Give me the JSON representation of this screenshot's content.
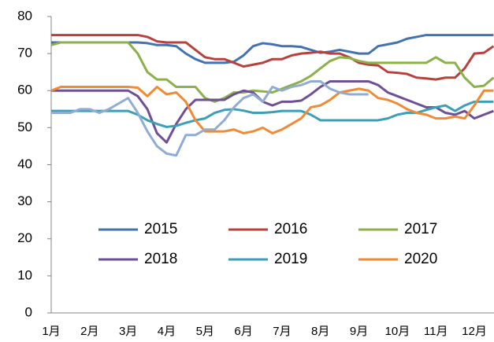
{
  "chart_data": {
    "type": "line",
    "categories": [
      "1月",
      null,
      null,
      null,
      "2月",
      null,
      null,
      null,
      "3月",
      null,
      null,
      null,
      "4月",
      null,
      null,
      null,
      "5月",
      null,
      null,
      null,
      "6月",
      null,
      null,
      null,
      "7月",
      null,
      null,
      null,
      "8月",
      null,
      null,
      null,
      "9月",
      null,
      null,
      null,
      "10月",
      null,
      null,
      null,
      "11月",
      null,
      null,
      null,
      "12月",
      null,
      null
    ],
    "ylim": [
      0,
      80
    ],
    "yticks": [
      0,
      10,
      20,
      30,
      40,
      50,
      60,
      70,
      80
    ],
    "grid": false,
    "legend": "inside",
    "series": [
      {
        "name": "2015",
        "color": "#4372b0",
        "values": [
          73,
          73,
          73,
          73,
          73,
          73,
          73,
          73,
          73,
          73,
          72.8,
          72.3,
          72.3,
          72,
          70,
          68.5,
          67.5,
          67.5,
          67.5,
          67.8,
          69.5,
          72,
          72.8,
          72.5,
          72,
          72,
          71.8,
          71,
          70.2,
          70.5,
          71,
          70.5,
          70,
          70,
          72,
          72.5,
          73,
          74,
          74.5,
          75,
          75,
          75,
          75,
          75,
          75,
          75,
          75
        ]
      },
      {
        "name": "2016",
        "color": "#b8413e",
        "values": [
          75,
          75,
          75,
          75,
          75,
          75,
          75,
          75,
          75,
          75,
          74.5,
          73.3,
          73,
          73,
          73,
          71,
          69,
          68.5,
          68.5,
          67.5,
          66.5,
          67,
          67.5,
          68.5,
          68.5,
          69.5,
          70,
          70.2,
          70.5,
          70,
          70,
          69,
          67.5,
          67,
          66.8,
          65,
          64.8,
          64.5,
          63.5,
          63.3,
          63,
          63.5,
          63.5,
          66,
          70,
          70.2,
          72
        ]
      },
      {
        "name": "2017",
        "color": "#8cb04a",
        "values": [
          72.3,
          73,
          73,
          73,
          73,
          73,
          73,
          73,
          73,
          70,
          65,
          63,
          63,
          61,
          61,
          61,
          58,
          57,
          58,
          59.5,
          59.5,
          60,
          59.8,
          59.5,
          60.5,
          61.5,
          62.5,
          64,
          66,
          68,
          69,
          68.8,
          68,
          67.5,
          67.5,
          67.5,
          67.5,
          67.5,
          67.5,
          67.5,
          69,
          67.5,
          67.5,
          63.5,
          61,
          61.3,
          63.5
        ]
      },
      {
        "name": "2018",
        "color": "#6f4f95",
        "values": [
          60,
          60,
          60,
          60,
          60,
          60,
          60,
          60,
          60,
          58.5,
          55,
          48.5,
          46,
          51,
          55,
          57.5,
          57.5,
          57.5,
          57.5,
          59,
          60,
          59.5,
          57,
          56,
          57,
          57,
          57.3,
          59,
          61,
          62.5,
          62.5,
          62.5,
          62.5,
          62.5,
          61.5,
          59.5,
          58.5,
          57.5,
          56.5,
          55.5,
          55.5,
          54,
          53.5,
          54.5,
          52.5,
          53.5,
          54.5
        ]
      },
      {
        "name": "2019",
        "color": "#3aa0b8",
        "values": [
          54.5,
          54.5,
          54.5,
          54.5,
          54.5,
          54.5,
          54.5,
          54.5,
          54.5,
          53.5,
          52,
          51,
          50.2,
          50.5,
          51.3,
          52,
          52.5,
          54,
          54.8,
          55,
          54.6,
          54,
          54,
          54.2,
          54.5,
          54.5,
          54.5,
          53.5,
          52,
          52,
          52,
          52,
          52,
          52,
          52,
          52.5,
          53.5,
          54,
          54,
          54.8,
          55.5,
          56,
          54.5,
          56,
          57,
          57,
          57
        ]
      },
      {
        "name": "2020",
        "color": "#f08a35",
        "values": [
          60,
          61,
          61,
          61,
          61,
          61,
          61,
          61,
          61,
          60.8,
          58.5,
          61,
          59,
          59.5,
          57,
          52,
          49,
          49,
          49,
          49.5,
          48.5,
          49,
          50,
          48.5,
          49.5,
          51,
          52.5,
          55.5,
          56,
          57.5,
          59.5,
          60,
          60.5,
          60,
          58,
          57.5,
          56.5,
          55,
          54,
          53.5,
          52.5,
          52.5,
          53,
          52.5,
          56,
          60,
          60
        ]
      },
      {
        "name": null,
        "color": "#91acd4",
        "values": [
          54,
          54,
          54,
          55,
          55,
          54,
          55,
          56.5,
          58,
          54,
          49,
          45,
          43,
          42.5,
          48,
          48,
          49.5,
          49.5,
          52,
          55.5,
          58,
          59,
          57,
          61,
          60,
          61,
          61.5,
          62.5,
          62.5,
          60.5,
          59.5,
          59,
          59,
          59,
          null,
          null,
          null,
          null,
          null,
          null,
          null,
          null,
          null,
          null,
          null,
          null,
          null
        ]
      }
    ]
  }
}
